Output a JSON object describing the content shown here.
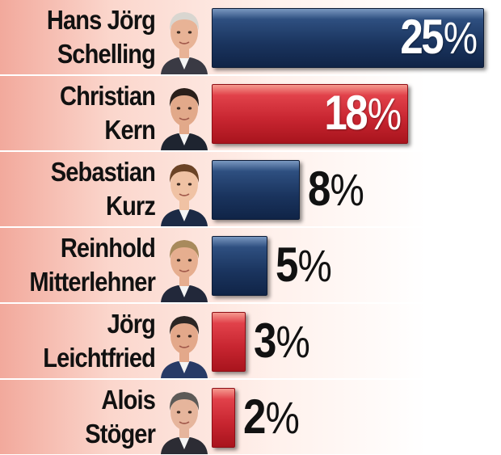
{
  "chart_data": {
    "type": "bar",
    "orientation": "horizontal",
    "categories": [
      "Hans Jörg\nSchelling",
      "Christian\nKern",
      "Sebastian\nKurz",
      "Reinhold\nMitterlehner",
      "Jörg\nLeichtfried",
      "Alois\nStöger"
    ],
    "values": [
      25,
      18,
      8,
      5,
      3,
      2
    ],
    "value_labels": [
      "25",
      "18",
      "8",
      "5",
      "3",
      "2"
    ],
    "unit": "%",
    "bar_colors": [
      "#1a345e",
      "#c72530",
      "#1a345e",
      "#1a345e",
      "#c72530",
      "#c72530"
    ],
    "title": "",
    "xlabel": "",
    "ylabel": "",
    "xlim": [
      0,
      25
    ],
    "grid": false,
    "legend": "none"
  },
  "avatars": [
    {
      "name": "person-portrait-icon",
      "hair": "#d9d6d0",
      "skin": "#e8b396",
      "suit": "#3a3a44"
    },
    {
      "name": "person-portrait-icon",
      "hair": "#2a1f1a",
      "skin": "#e2a98a",
      "suit": "#1e2430"
    },
    {
      "name": "person-portrait-icon",
      "hair": "#6b4326",
      "skin": "#f0c2a4",
      "suit": "#1c2a45"
    },
    {
      "name": "person-portrait-icon",
      "hair": "#a88a5c",
      "skin": "#e6ae8f",
      "suit": "#22283a"
    },
    {
      "name": "person-portrait-icon",
      "hair": "#2b2624",
      "skin": "#e3a88a",
      "suit": "#283a66"
    },
    {
      "name": "person-portrait-icon",
      "hair": "#5d5a57",
      "skin": "#e6b59c",
      "suit": "#2c2c34"
    }
  ]
}
